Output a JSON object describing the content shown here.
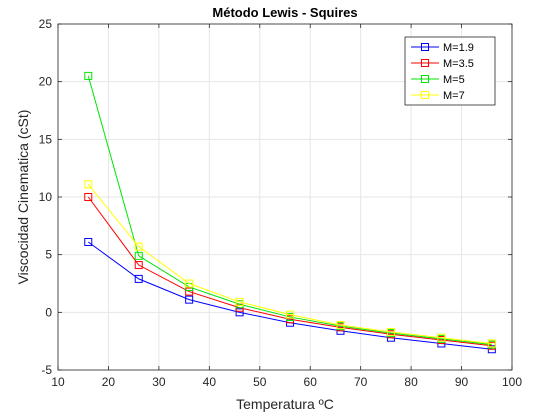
{
  "chart_data": {
    "type": "line",
    "title": "Método Lewis - Squires",
    "xlabel": "Temperatura ºC",
    "ylabel": "Viscocidad Cinematica (cSt)",
    "xlim": [
      10,
      100
    ],
    "ylim": [
      -5,
      25
    ],
    "xticks": [
      10,
      20,
      30,
      40,
      50,
      60,
      70,
      80,
      90,
      100
    ],
    "yticks": [
      -5,
      0,
      5,
      10,
      15,
      20,
      25
    ],
    "grid": true,
    "legend_position": "top-right",
    "marker": "square",
    "x": [
      16,
      26,
      36,
      46,
      56,
      66,
      76,
      86,
      96
    ],
    "series": [
      {
        "name": "M=1.9",
        "color": "#0000ff",
        "values": [
          6.1,
          2.9,
          1.1,
          0.0,
          -0.9,
          -1.6,
          -2.2,
          -2.7,
          -3.2
        ]
      },
      {
        "name": "M=3.5",
        "color": "#ff0000",
        "values": [
          10.0,
          4.1,
          1.8,
          0.4,
          -0.6,
          -1.3,
          -1.9,
          -2.4,
          -2.9
        ]
      },
      {
        "name": "M=5",
        "color": "#00e600",
        "values": [
          20.5,
          4.9,
          2.2,
          0.7,
          -0.4,
          -1.2,
          -1.8,
          -2.3,
          -2.8
        ]
      },
      {
        "name": "M=7",
        "color": "#ffff00",
        "values": [
          11.1,
          5.7,
          2.5,
          0.9,
          -0.2,
          -1.1,
          -1.7,
          -2.2,
          -2.7
        ]
      }
    ]
  }
}
